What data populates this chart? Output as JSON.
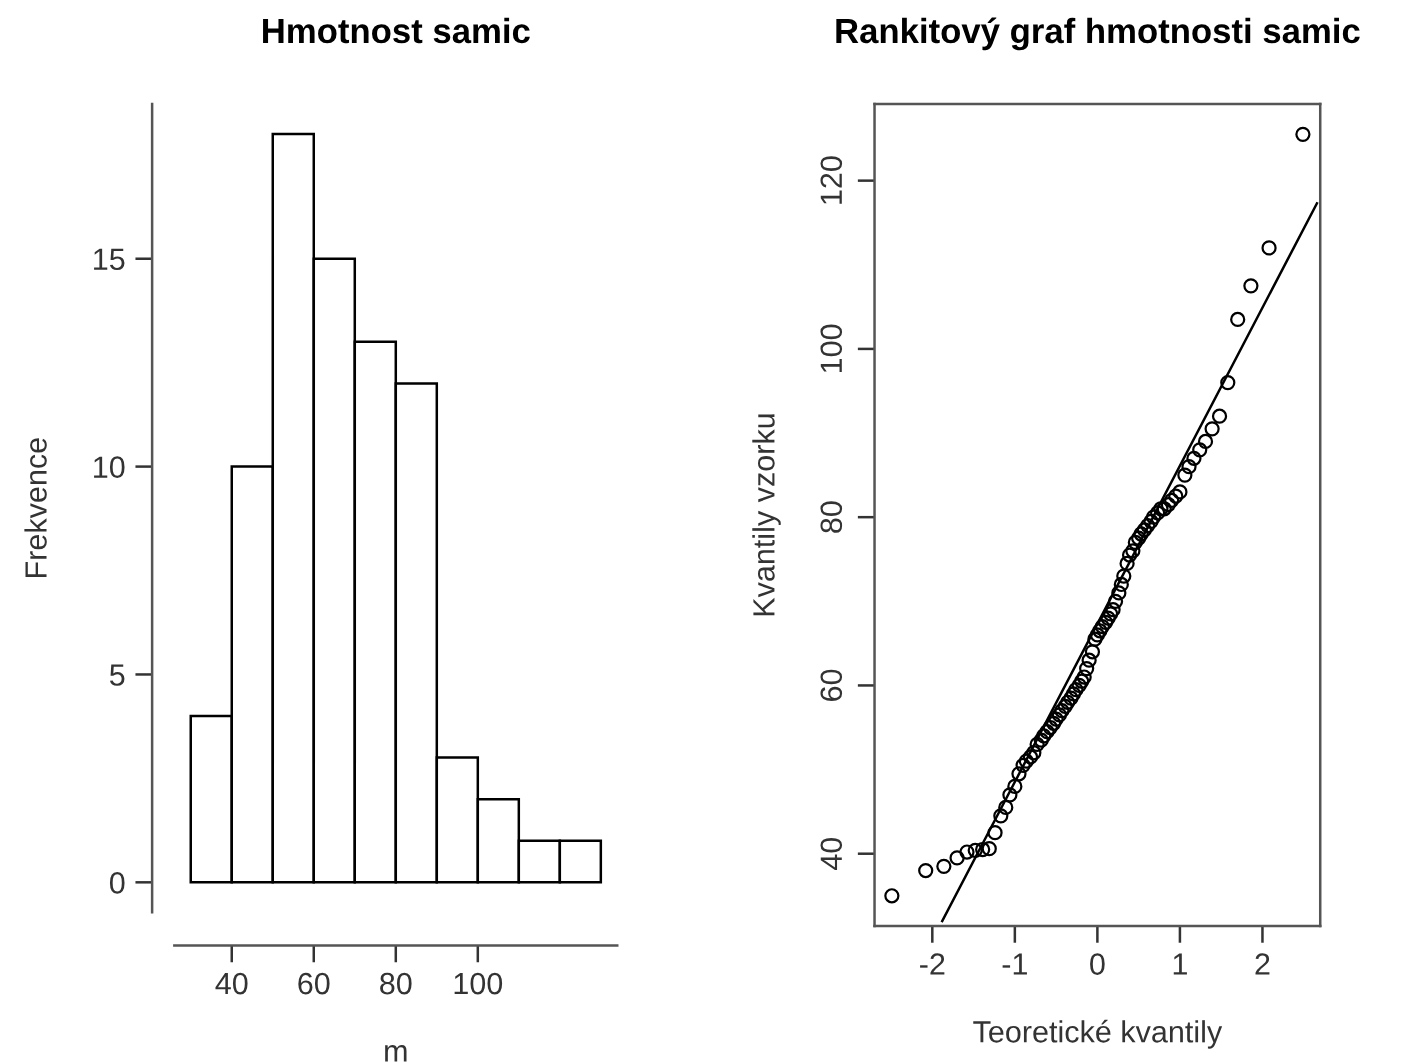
{
  "chart_data": [
    {
      "type": "histogram",
      "title": "Hmotnost samic",
      "xlabel": "m",
      "ylabel": "Frekvence",
      "bins": [
        30,
        40,
        50,
        60,
        70,
        80,
        90,
        100,
        110,
        120,
        130
      ],
      "values": [
        4,
        10,
        18,
        15,
        13,
        12,
        3,
        2,
        1,
        1
      ],
      "color": "#ffffff",
      "xlim": [
        26,
        134
      ],
      "ylim": [
        -0.72,
        18.72
      ],
      "xticks": [
        40,
        60,
        80,
        100
      ],
      "yticks": [
        0,
        5,
        10,
        15
      ],
      "grid": false
    },
    {
      "type": "scatter",
      "title": "Rankitový graf hmotnosti samic",
      "xlabel": "Teoretické kvantily",
      "ylabel": "Kvantily vzorku",
      "xlim": [
        -2.7,
        2.7
      ],
      "ylim": [
        31.4,
        129.1
      ],
      "xticks": [
        -2,
        -1,
        0,
        1,
        2
      ],
      "yticks": [
        40,
        60,
        80,
        100,
        120
      ],
      "grid": false,
      "marker": "circle",
      "series": [
        {
          "type": "scatter",
          "color": "#000000",
          "x": [
            -2.49,
            -2.08,
            -1.86,
            -1.7,
            -1.58,
            -1.48,
            -1.39,
            -1.31,
            -1.24,
            -1.17,
            -1.11,
            -1.06,
            -1.0,
            -0.95,
            -0.9,
            -0.86,
            -0.81,
            -0.77,
            -0.73,
            -0.68,
            -0.65,
            -0.61,
            -0.57,
            -0.53,
            -0.5,
            -0.46,
            -0.43,
            -0.39,
            -0.36,
            -0.32,
            -0.29,
            -0.26,
            -0.22,
            -0.19,
            -0.16,
            -0.13,
            -0.1,
            -0.06,
            -0.03,
            0.0,
            0.03,
            0.06,
            0.1,
            0.13,
            0.16,
            0.19,
            0.22,
            0.26,
            0.29,
            0.32,
            0.36,
            0.39,
            0.43,
            0.46,
            0.5,
            0.53,
            0.57,
            0.61,
            0.65,
            0.68,
            0.73,
            0.77,
            0.81,
            0.86,
            0.9,
            0.95,
            1.0,
            1.06,
            1.11,
            1.17,
            1.24,
            1.31,
            1.39,
            1.48,
            1.58,
            1.7,
            1.86,
            2.08,
            2.49
          ],
          "values": [
            35,
            38,
            38.5,
            39.5,
            40.2,
            40.4,
            40.5,
            40.6,
            42.5,
            44.5,
            45.5,
            47,
            48,
            49.5,
            50.5,
            51,
            51.5,
            52,
            53,
            53.5,
            54,
            54.5,
            55,
            55.5,
            56,
            56.5,
            57,
            57.5,
            58,
            58.5,
            59,
            59.5,
            60,
            60.5,
            61,
            62,
            63,
            64,
            65.5,
            66,
            66.5,
            67,
            67.5,
            68,
            68.5,
            69,
            70,
            71,
            72,
            73,
            74.5,
            75.5,
            76,
            77,
            77.5,
            78,
            78.5,
            79,
            79.5,
            80,
            80.5,
            81,
            81,
            81.5,
            82,
            82.5,
            83,
            85,
            86,
            87,
            88,
            89,
            90.5,
            92,
            96,
            103.5,
            107.5,
            112,
            125.5
          ]
        },
        {
          "type": "line",
          "color": "#000000",
          "marker": "none",
          "x": [
            -1.88,
            2.66
          ],
          "values": [
            32,
            117.3
          ]
        }
      ]
    }
  ]
}
